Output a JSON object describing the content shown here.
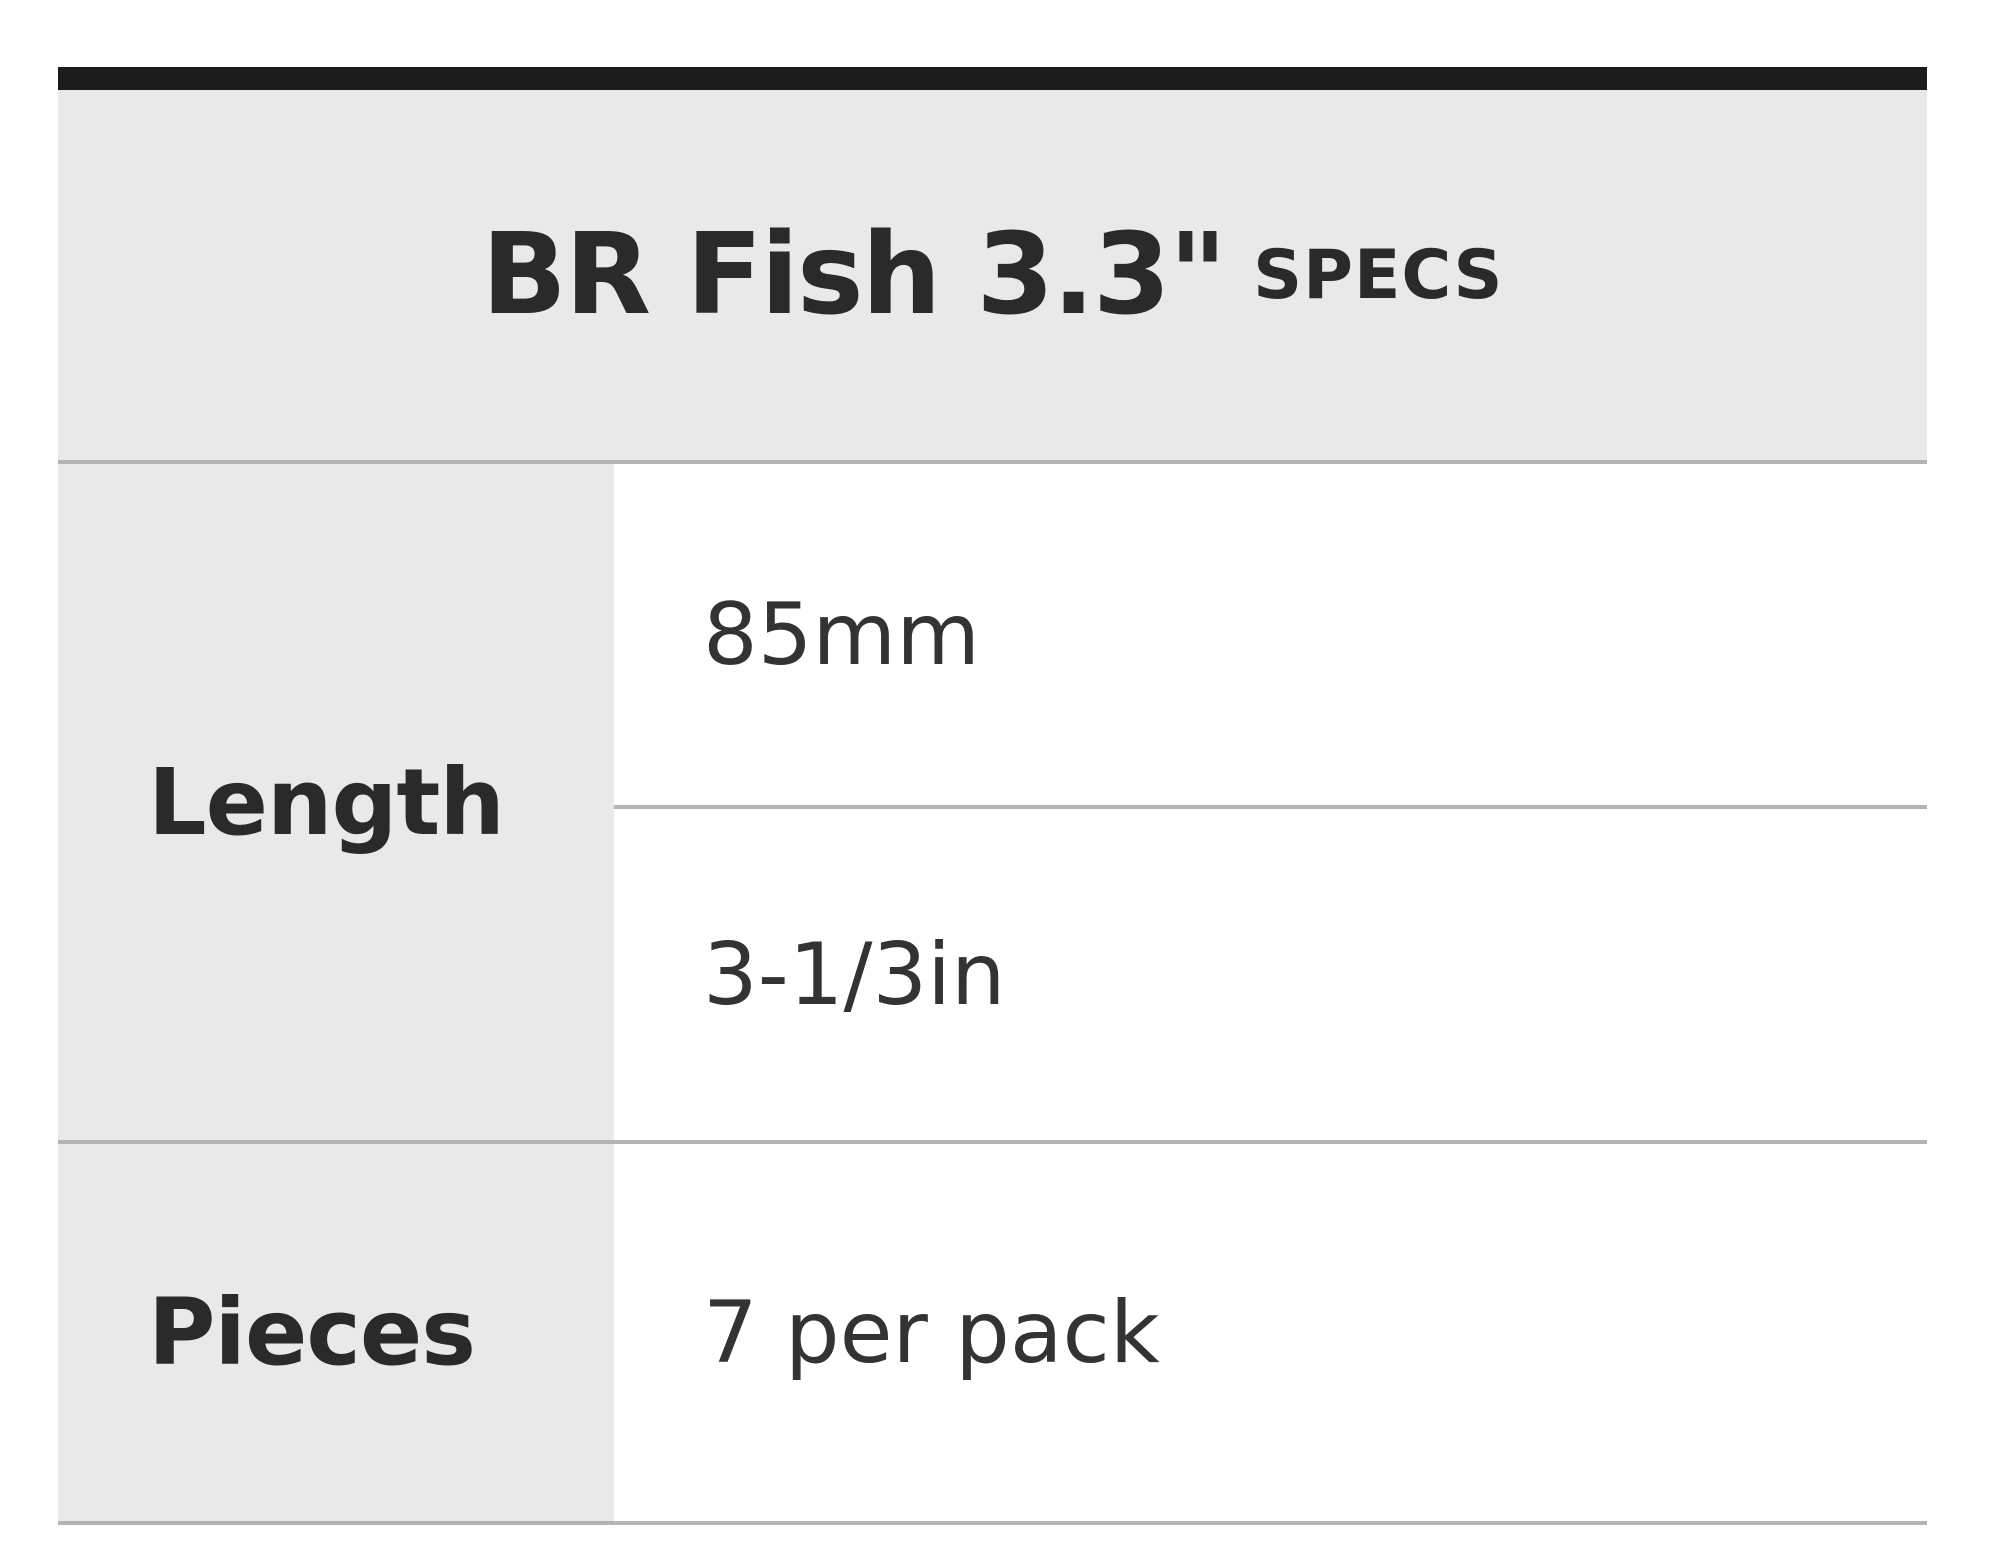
{
  "table": {
    "title": "BR Fish 3.3\"",
    "title_suffix": "SPECS",
    "rows": [
      {
        "label": "Length",
        "values": [
          "85mm",
          "3-1/3in"
        ]
      },
      {
        "label": "Pieces",
        "values": [
          "7 per pack"
        ]
      }
    ]
  }
}
